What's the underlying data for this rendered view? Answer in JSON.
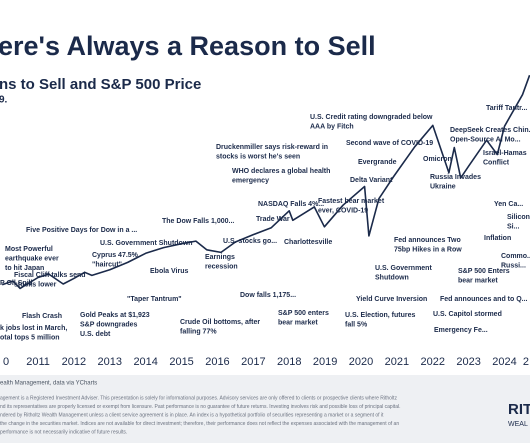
{
  "chart_data": {
    "type": "line",
    "title": "ere's Always a Reason to Sell",
    "subtitle": "ns to Sell and S&P 500 Price",
    "note": "9.",
    "color": "#1b2a4a",
    "x": [
      2010.0,
      2010.3,
      2010.5,
      2011.0,
      2011.3,
      2011.7,
      2012.0,
      2012.3,
      2012.5,
      2013.0,
      2013.5,
      2014.0,
      2014.5,
      2015.0,
      2015.4,
      2015.7,
      2016.1,
      2016.5,
      2017.0,
      2017.5,
      2018.0,
      2018.1,
      2018.7,
      2018.98,
      2019.5,
      2020.1,
      2020.22,
      2020.5,
      2020.9,
      2021.5,
      2022.0,
      2022.45,
      2022.6,
      2022.78,
      2023.0,
      2023.5,
      2023.8,
      2024.0,
      2024.5,
      2024.7
    ],
    "values": [
      1115,
      1200,
      1030,
      1280,
      1360,
      1130,
      1260,
      1400,
      1330,
      1460,
      1630,
      1840,
      1970,
      2060,
      2120,
      1920,
      1860,
      2100,
      2270,
      2430,
      2820,
      2600,
      2910,
      2450,
      2950,
      3380,
      2240,
      3100,
      3600,
      4300,
      4790,
      3700,
      4280,
      3580,
      3850,
      4450,
      4120,
      4770,
      5500,
      5950
    ],
    "xlim": [
      2009.94,
      2024.71
    ],
    "ylim": [
      0,
      6000
    ],
    "xticks": [
      {
        "value": 2010,
        "label": "0"
      },
      2011,
      2012,
      2013,
      2014,
      2015,
      2016,
      2017,
      2018,
      2019,
      2020,
      2021,
      2022,
      2023,
      2024,
      {
        "value": 2025,
        "label": "2"
      }
    ],
    "annotations": [
      [
        "Most Powerful",
        "earthquake ever",
        "to hit Japan"
      ],
      [
        "Five Positive Days for Dow in a ..."
      ],
      [
        "Fiscal Cliff talks send",
        "stocks lower"
      ],
      [
        "P Oil Spill"
      ],
      [
        "Flash Crash"
      ],
      [
        "k jobs lost in March,",
        "otal tops 5 million"
      ],
      [
        "Cyprus 47.5%",
        "\"haircut\""
      ],
      [
        "U.S. Government Shutdown"
      ],
      [
        "Gold Peaks at $1,923",
        "S&P downgrades",
        "U.S. debt"
      ],
      [
        "\"Taper Tantrum\""
      ],
      [
        "Ebola Virus"
      ],
      [
        "The Dow Falls 1,000..."
      ],
      [
        "Earnings",
        "recession"
      ],
      [
        "Crude Oil bottoms, after",
        "falling 77%"
      ],
      [
        "U.S. stocks go..."
      ],
      [
        "Trade War"
      ],
      [
        "Dow falls 1,175..."
      ],
      [
        "NASDAQ Falls 4%..."
      ],
      [
        "Charlottesville"
      ],
      [
        "S&P 500 enters",
        "bear market"
      ],
      [
        "Druckenmiller says risk-reward in",
        "stocks is worst he's seen"
      ],
      [
        "WHO declares a global health",
        "emergency"
      ],
      [
        "Fastest bear market",
        "ever, COVID-19"
      ],
      [
        "U.S. Credit rating downgraded below",
        "AAA by Fitch"
      ],
      [
        "Second wave of COVID-19"
      ],
      [
        "Evergrande"
      ],
      [
        "Delta Variant"
      ],
      [
        "Omicron"
      ],
      [
        "Russia Invades",
        "Ukraine"
      ],
      [
        "Israel-Hamas",
        "Conflict"
      ],
      [
        "DeepSeek Creates Chin...",
        "Open-Source AI Mo..."
      ],
      [
        "Tariff Tantr..."
      ],
      [
        "Yen Ca..."
      ],
      [
        "Silicon",
        "Si..."
      ],
      [
        "Inflation"
      ],
      [
        "Commo...",
        "Russi..."
      ],
      [
        "Fed announces Two",
        "75bp Hikes in a Row"
      ],
      [
        "U.S. Government",
        "Shutdown"
      ],
      [
        "S&P 500 Enters",
        "bear market"
      ],
      [
        "Fed announces and to Q..."
      ],
      [
        "Yield Curve Inversion"
      ],
      [
        "U.S. Election, futures",
        "fall 5%"
      ],
      [
        "U.S. Capitol stormed"
      ],
      [
        "Emergency Fe..."
      ]
    ]
  },
  "footer": {
    "source": "ealth Management, data via YCharts",
    "disclosure": [
      "agement is a Registered Investment Adviser. This presentation is solely for informational purposes. Advisory services are only offered to clients or prospective clients where Ritholtz",
      "nd its representatives are properly licensed or exempt from licensure. Past performance is no guarantee of future returns. Investing involves risk and possible loss of principal capital.",
      "ndered by Ritholtz Wealth Management unless a client service agreement is in place. An index is a hypothetical portfolio of securities representing a market or a segment of it",
      "the change in the securities market. Indices are not available for direct investment; therefore, their performance does not reflect the expenses associated with the management of an",
      "performance is not necessarily indicative of future results."
    ],
    "logo": "RIT",
    "logo_sub": "WEAL"
  }
}
